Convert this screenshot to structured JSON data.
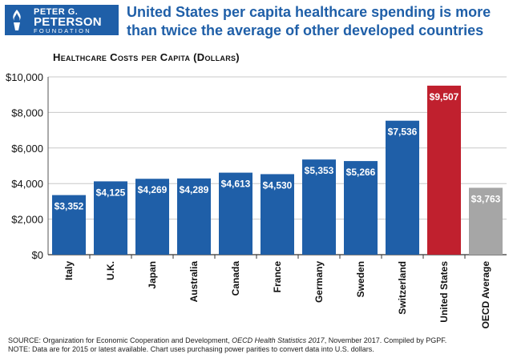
{
  "logo": {
    "line1": "PETER G.",
    "line2": "PETERSON",
    "line3": "FOUNDATION"
  },
  "headline": "United States per capita healthcare spending is more than twice the average of other developed countries",
  "chart_data": {
    "type": "bar",
    "title": "Healthcare Costs per Capita (Dollars)",
    "categories": [
      "Italy",
      "U.K.",
      "Japan",
      "Australia",
      "Canada",
      "France",
      "Germany",
      "Sweden",
      "Switzerland",
      "United States",
      "OECD Average"
    ],
    "values": [
      3352,
      4125,
      4269,
      4289,
      4613,
      4530,
      5353,
      5266,
      7536,
      9507,
      3763
    ],
    "value_labels": [
      "$3,352",
      "$4,125",
      "$4,269",
      "$4,289",
      "$4,613",
      "$4,530",
      "$5,353",
      "$5,266",
      "$7,536",
      "$9,507",
      "$3,763"
    ],
    "colors": [
      "#1f5fa8",
      "#1f5fa8",
      "#1f5fa8",
      "#1f5fa8",
      "#1f5fa8",
      "#1f5fa8",
      "#1f5fa8",
      "#1f5fa8",
      "#1f5fa8",
      "#c0202e",
      "#a6a6a6"
    ],
    "ylim": [
      0,
      10000
    ],
    "yticks": [
      "$0",
      "$2,000",
      "$4,000",
      "$6,000",
      "$8,000",
      "$10,000"
    ],
    "ytick_values": [
      0,
      2000,
      4000,
      6000,
      8000,
      10000
    ],
    "grid": true
  },
  "footer": {
    "source_prefix": "SOURCE: Organization for Economic Cooperation and Development, ",
    "source_italic": "OECD Health Statistics 2017",
    "source_suffix": ", November 2017. Compiled by PGPF.",
    "note": "NOTE: Data are for 2015 or latest available. Chart uses purchasing power parities to convert data into U.S. dollars."
  }
}
